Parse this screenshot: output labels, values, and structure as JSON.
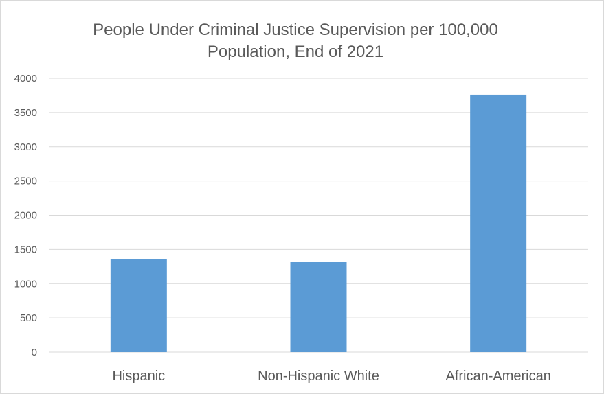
{
  "chart_data": {
    "type": "bar",
    "title_lines": [
      "People Under Criminal Justice Supervision per 100,000",
      "Population, End of 2021"
    ],
    "xlabel": "",
    "ylabel": "",
    "categories": [
      "Hispanic",
      "Non-Hispanic White",
      "African-American"
    ],
    "values": [
      1360,
      1320,
      3760
    ],
    "ylim": [
      0,
      4000
    ],
    "y_ticks": [
      0,
      500,
      1000,
      1500,
      2000,
      2500,
      3000,
      3500,
      4000
    ],
    "grid": true,
    "legend": "none",
    "bar_color": "#5b9bd5",
    "grid_color": "#d9d9d9"
  }
}
